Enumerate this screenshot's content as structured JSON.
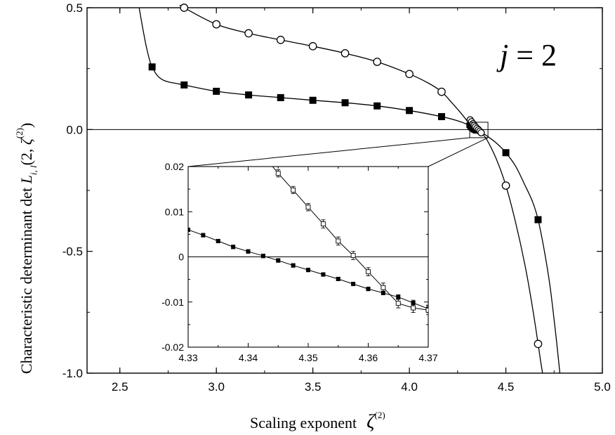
{
  "chart_data": [
    {
      "type": "line",
      "annotation": {
        "j": "j",
        "eq": " = 2"
      },
      "xlabel": {
        "text": "Scaling exponent",
        "symbol": "ζ",
        "sup": "(2)"
      },
      "ylabel": {
        "text": "Characteristic determinant   det ",
        "symbol": "L",
        "sub": "i, l",
        "args": "(2, ",
        "symbol2": "ζ",
        "sup": "(2)",
        "close": ")"
      },
      "xlim": [
        2.33,
        5.0
      ],
      "ylim": [
        -1.0,
        0.5
      ],
      "xticks": [
        "2.5",
        "3.0",
        "3.5",
        "4.0",
        "4.5",
        "5.0"
      ],
      "xtick_values": [
        2.5,
        3.0,
        3.5,
        4.0,
        4.5,
        5.0
      ],
      "yticks": [
        "0.5",
        "0.0",
        "-0.5",
        "-1.0"
      ],
      "ytick_values": [
        0.5,
        0.0,
        -0.5,
        -1.0
      ],
      "zero_line": true,
      "series": [
        {
          "marker": "square-filled",
          "x": [
            2.667,
            2.833,
            3.0,
            3.167,
            3.333,
            3.5,
            3.667,
            3.833,
            4.0,
            4.167,
            4.5,
            4.667
          ],
          "y": [
            0.257,
            0.183,
            0.157,
            0.142,
            0.131,
            0.12,
            0.11,
            0.097,
            0.078,
            0.053,
            -0.095,
            -0.37
          ],
          "curve_x": [
            2.6,
            2.62,
            2.64,
            2.667,
            2.72,
            2.833,
            3.0,
            3.167,
            3.333,
            3.5,
            3.667,
            3.833,
            4.0,
            4.167,
            4.25,
            4.3,
            4.33,
            4.35,
            4.37,
            4.4,
            4.45,
            4.5,
            4.55,
            4.6,
            4.64,
            4.667,
            4.7,
            4.73,
            4.76,
            4.78
          ],
          "curve_y": [
            0.5,
            0.41,
            0.33,
            0.257,
            0.205,
            0.183,
            0.157,
            0.142,
            0.131,
            0.12,
            0.11,
            0.097,
            0.078,
            0.053,
            0.036,
            0.021,
            0.007,
            -0.003,
            -0.01,
            -0.025,
            -0.055,
            -0.095,
            -0.15,
            -0.23,
            -0.3,
            -0.37,
            -0.5,
            -0.65,
            -0.85,
            -1.0
          ]
        },
        {
          "marker": "circle-open",
          "x": [
            2.833,
            3.0,
            3.167,
            3.333,
            3.5,
            3.667,
            3.833,
            4.0,
            4.167,
            4.5,
            4.667
          ],
          "y": [
            0.5,
            0.432,
            0.395,
            0.368,
            0.342,
            0.313,
            0.278,
            0.228,
            0.155,
            -0.23,
            -0.88
          ],
          "curve_x": [
            2.8,
            2.833,
            3.0,
            3.167,
            3.333,
            3.5,
            3.667,
            3.833,
            4.0,
            4.1,
            4.167,
            4.22,
            4.27,
            4.31,
            4.34,
            4.37,
            4.4,
            4.45,
            4.5,
            4.55,
            4.6,
            4.64,
            4.667,
            4.68,
            4.69
          ],
          "curve_y": [
            0.52,
            0.5,
            0.432,
            0.395,
            0.368,
            0.342,
            0.313,
            0.278,
            0.228,
            0.19,
            0.155,
            0.11,
            0.065,
            0.025,
            0.005,
            -0.012,
            -0.04,
            -0.12,
            -0.23,
            -0.38,
            -0.56,
            -0.74,
            -0.88,
            -0.95,
            -1.0
          ]
        }
      ],
      "cluster_square": {
        "x": [
          4.31,
          4.315,
          4.32,
          4.325,
          4.33,
          4.335,
          4.34,
          4.345
        ],
        "y": [
          0.018,
          0.012,
          0.008,
          0.005,
          0.002,
          -0.001,
          -0.003,
          -0.005
        ]
      },
      "cluster_circle": {
        "x": [
          4.315,
          4.322,
          4.33,
          4.336,
          4.342,
          4.35,
          4.358,
          4.365,
          4.372
        ],
        "y": [
          0.04,
          0.032,
          0.024,
          0.017,
          0.011,
          0.005,
          -0.001,
          -0.007,
          -0.013
        ]
      }
    },
    {
      "type": "line",
      "role": "inset",
      "xlim": [
        4.33,
        4.37
      ],
      "ylim": [
        -0.02,
        0.02
      ],
      "xticks": [
        "4.33",
        "4.34",
        "4.35",
        "4.36",
        "4.37"
      ],
      "xtick_values": [
        4.33,
        4.34,
        4.35,
        4.36,
        4.37
      ],
      "yticks": [
        "0.02",
        "0.01",
        "0",
        "-0.01",
        "-0.02"
      ],
      "ytick_values": [
        0.02,
        0.01,
        0.0,
        -0.01,
        -0.02
      ],
      "zero_line": true,
      "series": [
        {
          "marker": "square-filled",
          "x": [
            4.33,
            4.3325,
            4.335,
            4.3375,
            4.34,
            4.3425,
            4.345,
            4.3475,
            4.35,
            4.3525,
            4.355,
            4.3575,
            4.36,
            4.3625,
            4.365,
            4.3675,
            4.37
          ],
          "y": [
            0.006,
            0.0048,
            0.0035,
            0.0022,
            0.0012,
            0.0002,
            -0.0008,
            -0.0019,
            -0.0029,
            -0.0039,
            -0.0049,
            -0.006,
            -0.0071,
            -0.008,
            -0.0089,
            -0.0102,
            -0.0115
          ],
          "err": [
            0.0003,
            0.0004,
            0.0004,
            0.0004,
            0.0004,
            0.0004,
            0.0004,
            0.0004,
            0.0004,
            0.0004,
            0.0004,
            0.0004,
            0.0004,
            0.0004,
            0.0005,
            0.0006,
            0.0008
          ]
        },
        {
          "marker": "square-open",
          "x": [
            4.3425,
            4.345,
            4.3475,
            4.35,
            4.3525,
            4.355,
            4.3575,
            4.36,
            4.3625,
            4.365,
            4.3675,
            4.37
          ],
          "y": [
            0.0225,
            0.0185,
            0.0148,
            0.011,
            0.0073,
            0.0035,
            0.0003,
            -0.0033,
            -0.0068,
            -0.0103,
            -0.0113,
            -0.0118
          ],
          "err": [
            0.0008,
            0.0008,
            0.0008,
            0.0008,
            0.0009,
            0.0009,
            0.0009,
            0.0009,
            0.001,
            0.001,
            0.001,
            0.001
          ]
        }
      ]
    }
  ]
}
